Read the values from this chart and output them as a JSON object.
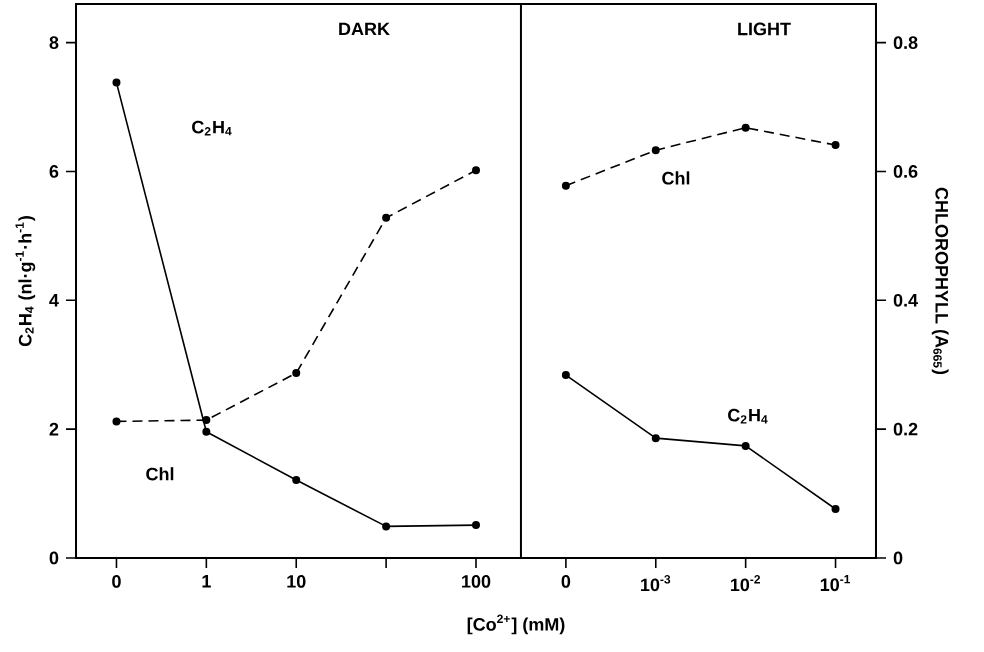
{
  "chart_data": {
    "type": "line",
    "xlabel": "[Co$^{2+}$] (mM)",
    "ylabel": "C$_{2}$H$_{4}$ (nl·g$^{-1}$·h$^{-1}$)",
    "y2label": "CHLOROPHYLL (A$_{665}$)",
    "marker": "circle",
    "categories": [
      "0",
      "1",
      "10",
      null,
      "100",
      "0",
      "10$^{-3}$",
      "10$^{-2}$",
      "10$^{-1}$"
    ],
    "ylim": [
      0,
      8.6
    ],
    "yticks": [
      0,
      2,
      4,
      6,
      8
    ],
    "y2lim": [
      0,
      0.86
    ],
    "y2ticks": [
      0,
      0.2,
      0.4,
      0.6,
      0.8
    ],
    "series": [
      {
        "color": "#000000",
        "line_style": "solid",
        "values": [
          7.38,
          1.96,
          1.21,
          0.49,
          0.51,
          null,
          null,
          null,
          null
        ]
      },
      {
        "color": "#000000",
        "line_style": "solid",
        "values": [
          null,
          null,
          null,
          null,
          null,
          2.84,
          1.86,
          1.74,
          0.76
        ]
      },
      {
        "color": "#000000",
        "line_style": "dashed",
        "axis": "y2",
        "values": [
          0.212,
          0.214,
          0.287,
          0.528,
          0.602,
          null,
          null,
          null,
          null
        ]
      },
      {
        "color": "#000000",
        "line_style": "dashed",
        "axis": "y2",
        "values": [
          null,
          null,
          null,
          null,
          null,
          0.578,
          0.633,
          0.668,
          0.641
        ]
      }
    ],
    "annotations": [
      "DARK",
      "LIGHT",
      "C$_{2}$H$_{4}$",
      "Chl",
      "Chl",
      "C$_{2}$H$_{4}$"
    ]
  }
}
